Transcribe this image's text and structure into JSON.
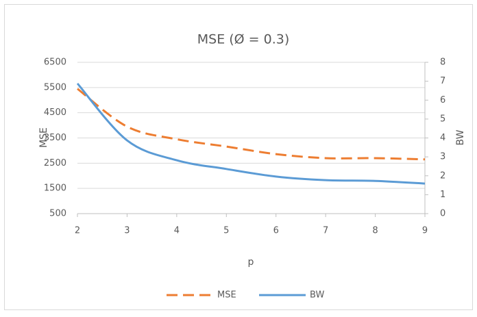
{
  "chart_data": {
    "type": "line",
    "title": "MSE (Ø = 0.3)",
    "x_label": "p",
    "y_label": "MSE",
    "y2_label": "BW",
    "x": [
      2,
      3,
      4,
      5,
      6,
      7,
      8,
      9
    ],
    "xlim": [
      2,
      9
    ],
    "xticks": [
      2,
      3,
      4,
      5,
      6,
      7,
      8,
      9
    ],
    "ylim": [
      500,
      6500
    ],
    "yticks": [
      500,
      1500,
      2500,
      3500,
      4500,
      5500,
      6500
    ],
    "y2lim": [
      0,
      8
    ],
    "y2ticks": [
      0,
      1,
      2,
      3,
      4,
      5,
      6,
      7,
      8
    ],
    "grid": true,
    "legend": "bottom",
    "series": [
      {
        "name": "MSE",
        "color": "#ed7d31",
        "dashed": true,
        "values": [
          5450,
          3950,
          3450,
          3160,
          2860,
          2700,
          2700,
          2650
        ]
      },
      {
        "name": "BW",
        "color": "#5b9bd5",
        "axis": "y2",
        "values": [
          6.88,
          3.87,
          2.82,
          2.36,
          1.96,
          1.77,
          1.73,
          1.59
        ]
      }
    ]
  }
}
